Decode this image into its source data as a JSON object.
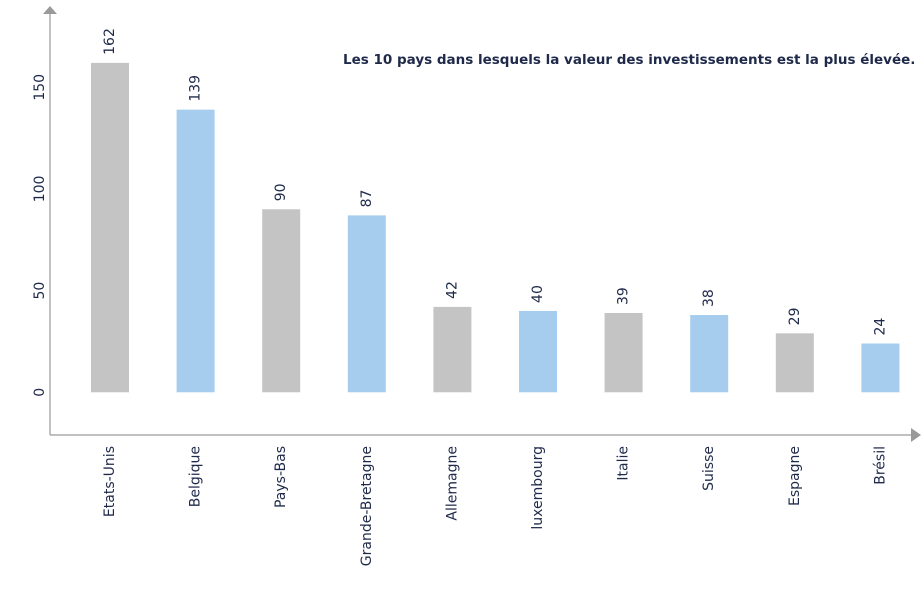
{
  "chart_data": {
    "type": "bar",
    "title": "Les 10 pays dans lesquels la valeur des investissements est la plus élevée.",
    "categories": [
      "Etats-Unis",
      "Belgique",
      "Pays-Bas",
      "Grande-Bretagne",
      "Allemagne",
      "luxembourg",
      "Italie",
      "Suisse",
      "Espagne",
      "Brésil"
    ],
    "values": [
      162,
      139,
      90,
      87,
      42,
      40,
      39,
      38,
      29,
      24
    ],
    "colors": [
      "#c4c4c4",
      "#a7cdee",
      "#c4c4c4",
      "#a7cdee",
      "#c4c4c4",
      "#a7cdee",
      "#c4c4c4",
      "#a7cdee",
      "#c4c4c4",
      "#a7cdee"
    ],
    "ylim": [
      -21,
      188
    ],
    "yticks": [
      0,
      50,
      100,
      150
    ],
    "grid": false
  }
}
